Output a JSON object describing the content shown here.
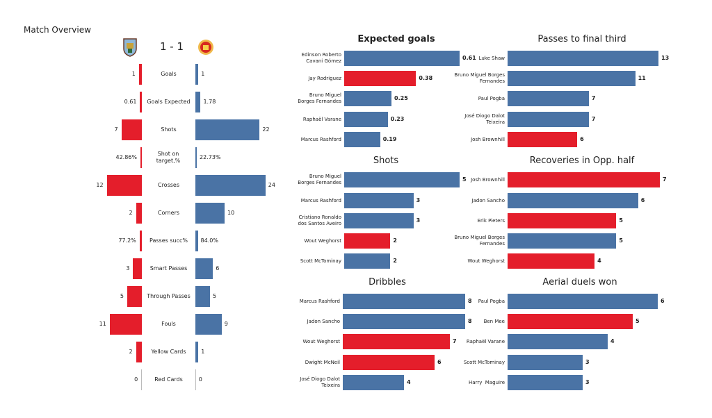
{
  "title": "Match Overview",
  "score": "1 - 1",
  "colors": {
    "home": "#e41e2b",
    "away": "#4a73a5"
  },
  "teams": {
    "home_logo": "burnley-crest",
    "away_logo": "manchester-united-crest"
  },
  "stats": [
    {
      "label": "Goals",
      "home": "1",
      "away": "1",
      "hv": 1,
      "av": 1
    },
    {
      "label": "Goals Expected",
      "home": "0.61",
      "away": "1.78",
      "hv": 0.61,
      "av": 1.78
    },
    {
      "label": "Shots",
      "home": "7",
      "away": "22",
      "hv": 7,
      "av": 22
    },
    {
      "label": "Shot on target,%",
      "home": "42.86%",
      "away": "22.73%",
      "hv": 0.4286,
      "av": 0.2273
    },
    {
      "label": "Crosses",
      "home": "12",
      "away": "24",
      "hv": 12,
      "av": 24
    },
    {
      "label": "Corners",
      "home": "2",
      "away": "10",
      "hv": 2,
      "av": 10
    },
    {
      "label": "Passes succ%",
      "home": "77.2%",
      "away": "84.0%",
      "hv": 0.772,
      "av": 0.84
    },
    {
      "label": "Smart Passes",
      "home": "3",
      "away": "6",
      "hv": 3,
      "av": 6
    },
    {
      "label": "Through Passes",
      "home": "5",
      "away": "5",
      "hv": 5,
      "av": 5
    },
    {
      "label": "Fouls",
      "home": "11",
      "away": "9",
      "hv": 11,
      "av": 9
    },
    {
      "label": "Yellow Cards",
      "home": "2",
      "away": "1",
      "hv": 2,
      "av": 1
    },
    {
      "label": "Red Cards",
      "home": "0",
      "away": "0",
      "hv": 0,
      "av": 0
    }
  ],
  "chart_data": [
    {
      "type": "bar",
      "title": "Expected goals",
      "bold_title": true,
      "categories": [
        "Edinson Roberto\nCavani Gómez",
        "Jay Rodriguez",
        "Bruno Miguel\nBorges Fernandes",
        "Raphaël Varane",
        "Marcus Rashford"
      ],
      "values": [
        0.61,
        0.38,
        0.25,
        0.23,
        0.19
      ],
      "labels": [
        "0.61",
        "0.38",
        "0.25",
        "0.23",
        "0.19"
      ],
      "team": [
        "away",
        "home",
        "away",
        "away",
        "away"
      ]
    },
    {
      "type": "bar",
      "title": "Shots",
      "categories": [
        "Bruno Miguel\nBorges Fernandes",
        "Marcus Rashford",
        "Cristiano Ronaldo\ndos Santos Aveiro",
        "Wout Weghorst",
        "Scott McTominay"
      ],
      "values": [
        5,
        3,
        3,
        2,
        2
      ],
      "labels": [
        "5",
        "3",
        "3",
        "2",
        "2"
      ],
      "team": [
        "away",
        "away",
        "away",
        "home",
        "away"
      ]
    },
    {
      "type": "bar",
      "title": "Dribbles",
      "categories": [
        "Marcus Rashford",
        "Jadon Sancho",
        "Wout Weghorst",
        "Dwight McNeil",
        "José Diogo Dalot\nTeixeira"
      ],
      "values": [
        8,
        8,
        7,
        6,
        4
      ],
      "labels": [
        "8",
        "8",
        "7",
        "6",
        "4"
      ],
      "team": [
        "away",
        "away",
        "home",
        "home",
        "away"
      ]
    },
    {
      "type": "bar",
      "title": "Passes to final third",
      "categories": [
        "Luke Shaw",
        "Bruno Miguel Borges\nFernandes",
        "Paul Pogba",
        "José Diogo Dalot\nTeixeira",
        "Josh Brownhill"
      ],
      "values": [
        13,
        11,
        7,
        7,
        6
      ],
      "labels": [
        "13",
        "11",
        "7",
        "7",
        "6"
      ],
      "team": [
        "away",
        "away",
        "away",
        "away",
        "home"
      ]
    },
    {
      "type": "bar",
      "title": "Recoveries in Opp. half",
      "categories": [
        "Josh Brownhill",
        "Jadon Sancho",
        "Erik Pieters",
        "Bruno Miguel Borges\nFernandes",
        "Wout Weghorst"
      ],
      "values": [
        7,
        6,
        5,
        5,
        4
      ],
      "labels": [
        "7",
        "6",
        "5",
        "5",
        "4"
      ],
      "team": [
        "home",
        "away",
        "home",
        "away",
        "home"
      ]
    },
    {
      "type": "bar",
      "title": "Aerial duels won",
      "categories": [
        "Paul Pogba",
        "Ben Mee",
        "Raphaël Varane",
        "Scott McTominay",
        "Harry  Maguire"
      ],
      "values": [
        6,
        5,
        4,
        3,
        3
      ],
      "labels": [
        "6",
        "5",
        "4",
        "3",
        "3"
      ],
      "team": [
        "away",
        "home",
        "away",
        "away",
        "away"
      ]
    }
  ]
}
